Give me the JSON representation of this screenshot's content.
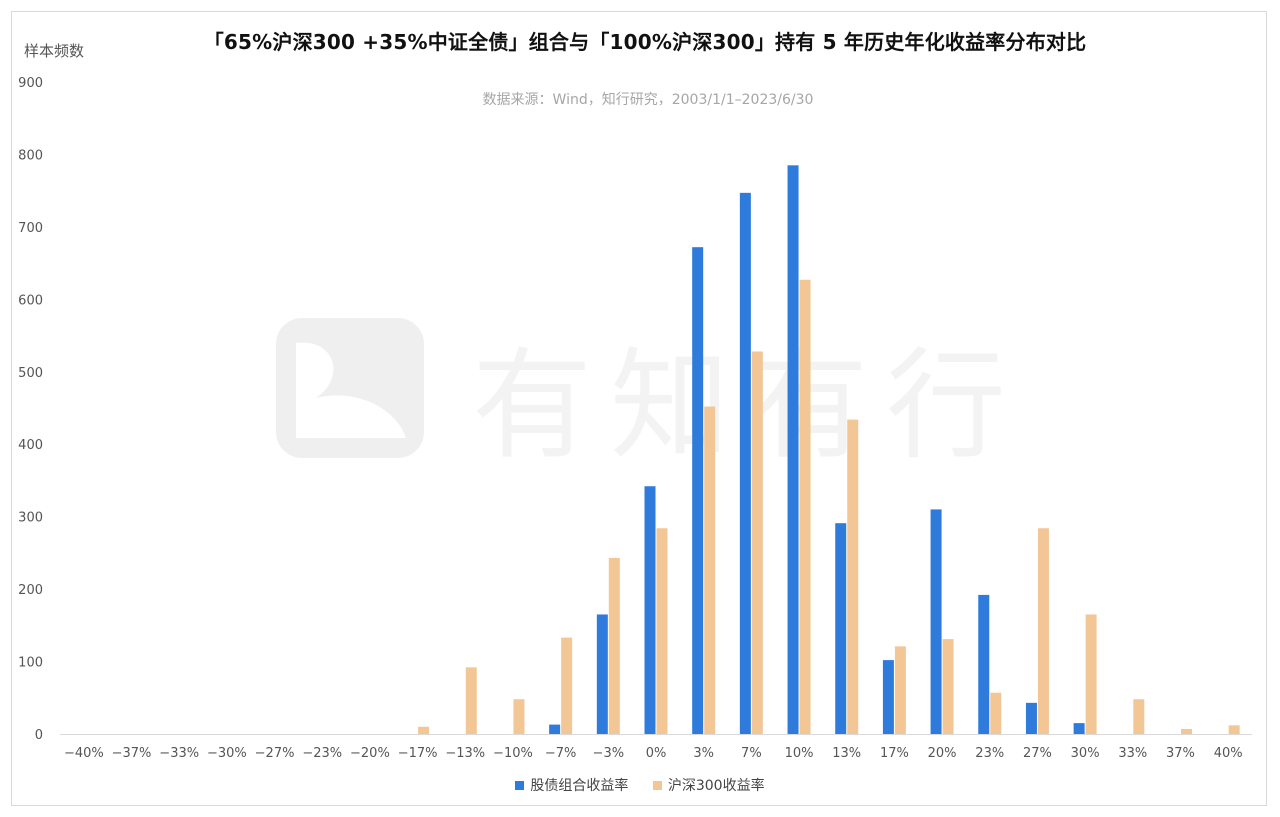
{
  "chart_data": {
    "type": "bar",
    "title": "「65%沪深300 +35%中证全债」组合与「100%沪深300」持有 5 年历史年化收益率分布对比",
    "subtitle": "数据来源：Wind，知行研究，2003/1/1–2023/6/30",
    "ylabel": "样本频数",
    "ylim": [
      0,
      900
    ],
    "yticks": [
      0,
      100,
      200,
      300,
      400,
      500,
      600,
      700,
      800,
      900
    ],
    "grid": false,
    "legend_position": "bottom",
    "categories": [
      "−40%",
      "−37%",
      "−33%",
      "−30%",
      "−27%",
      "−23%",
      "−20%",
      "−17%",
      "−13%",
      "−10%",
      "−7%",
      "−3%",
      "0%",
      "3%",
      "7%",
      "10%",
      "13%",
      "17%",
      "20%",
      "23%",
      "27%",
      "30%",
      "33%",
      "37%",
      "40%"
    ],
    "series": [
      {
        "name": "股债组合收益率",
        "color": "#2f7bdc",
        "values": [
          0,
          0,
          0,
          0,
          0,
          0,
          0,
          0,
          0,
          0,
          13,
          165,
          342,
          672,
          747,
          785,
          291,
          102,
          310,
          192,
          43,
          15,
          0,
          0,
          0
        ]
      },
      {
        "name": "沪深300收益率",
        "color": "#f3c696",
        "values": [
          0,
          0,
          0,
          0,
          0,
          0,
          0,
          10,
          92,
          48,
          133,
          243,
          284,
          452,
          528,
          627,
          434,
          121,
          131,
          57,
          284,
          165,
          48,
          7,
          12
        ]
      }
    ]
  },
  "watermark": {
    "text": "有知有行",
    "icon": "brand-logo-icon"
  }
}
